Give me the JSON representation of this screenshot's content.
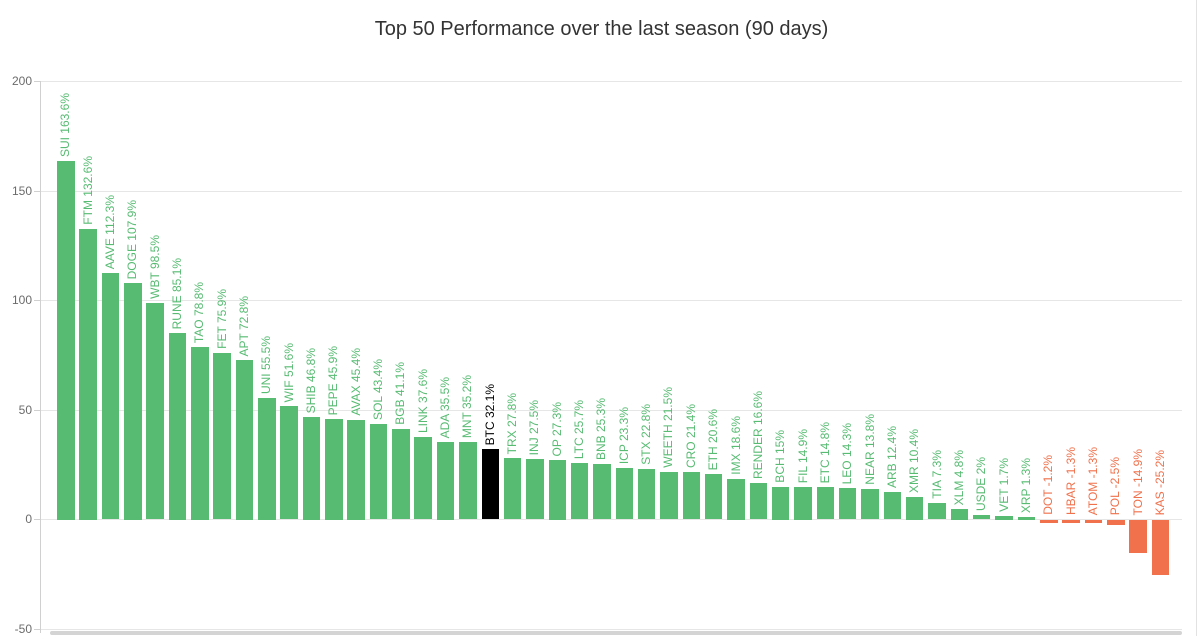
{
  "title": "Top 50 Performance over the last season (90 days)",
  "colors": {
    "positive": "#57bb72",
    "negative": "#f0714c",
    "btc": "#000000",
    "grid": "#e6e6e6",
    "axis": "#d0d0d0",
    "tick_text": "#6b6b6b",
    "title_text": "#333333",
    "scrollbar": "#d4d4d4"
  },
  "chart_data": {
    "type": "bar",
    "title": "Top 50 Performance over the last season (90 days)",
    "xlabel": "",
    "ylabel": "",
    "ylim": [
      -50,
      200
    ],
    "grid": true,
    "legend_position": "none",
    "y_ticks": [
      {
        "label": "200",
        "value": 200
      },
      {
        "label": "150",
        "value": 150
      },
      {
        "label": "100",
        "value": 100
      },
      {
        "label": "50",
        "value": 50
      },
      {
        "label": "0",
        "value": 0
      },
      {
        "label": "-50",
        "value": -50
      }
    ],
    "bars": [
      {
        "sym": "SUI",
        "label": "SUI 163.6%",
        "value": 163.6,
        "color_role": "positive"
      },
      {
        "sym": "FTM",
        "label": "FTM 132.6%",
        "value": 132.6,
        "color_role": "positive"
      },
      {
        "sym": "AAVE",
        "label": "AAVE 112.3%",
        "value": 112.3,
        "color_role": "positive"
      },
      {
        "sym": "DOGE",
        "label": "DOGE 107.9%",
        "value": 107.9,
        "color_role": "positive"
      },
      {
        "sym": "WBT",
        "label": "WBT 98.5%",
        "value": 98.5,
        "color_role": "positive"
      },
      {
        "sym": "RUNE",
        "label": "RUNE 85.1%",
        "value": 85.1,
        "color_role": "positive"
      },
      {
        "sym": "TAO",
        "label": "TAO 78.8%",
        "value": 78.8,
        "color_role": "positive"
      },
      {
        "sym": "FET",
        "label": "FET 75.9%",
        "value": 75.9,
        "color_role": "positive"
      },
      {
        "sym": "APT",
        "label": "APT 72.8%",
        "value": 72.8,
        "color_role": "positive"
      },
      {
        "sym": "UNI",
        "label": "UNI 55.5%",
        "value": 55.5,
        "color_role": "positive"
      },
      {
        "sym": "WIF",
        "label": "WIF 51.6%",
        "value": 51.6,
        "color_role": "positive"
      },
      {
        "sym": "SHIB",
        "label": "SHIB 46.8%",
        "value": 46.8,
        "color_role": "positive"
      },
      {
        "sym": "PEPE",
        "label": "PEPE 45.9%",
        "value": 45.9,
        "color_role": "positive"
      },
      {
        "sym": "AVAX",
        "label": "AVAX 45.4%",
        "value": 45.4,
        "color_role": "positive"
      },
      {
        "sym": "SOL",
        "label": "SOL 43.4%",
        "value": 43.4,
        "color_role": "positive"
      },
      {
        "sym": "BGB",
        "label": "BGB 41.1%",
        "value": 41.1,
        "color_role": "positive"
      },
      {
        "sym": "LINK",
        "label": "LINK 37.6%",
        "value": 37.6,
        "color_role": "positive"
      },
      {
        "sym": "ADA",
        "label": "ADA 35.5%",
        "value": 35.5,
        "color_role": "positive"
      },
      {
        "sym": "MNT",
        "label": "MNT 35.2%",
        "value": 35.2,
        "color_role": "positive"
      },
      {
        "sym": "BTC",
        "label": "BTC 32.1%",
        "value": 32.1,
        "color_role": "btc"
      },
      {
        "sym": "TRX",
        "label": "TRX 27.8%",
        "value": 27.8,
        "color_role": "positive"
      },
      {
        "sym": "INJ",
        "label": "INJ 27.5%",
        "value": 27.5,
        "color_role": "positive"
      },
      {
        "sym": "OP",
        "label": "OP 27.3%",
        "value": 27.3,
        "color_role": "positive"
      },
      {
        "sym": "LTC",
        "label": "LTC 25.7%",
        "value": 25.7,
        "color_role": "positive"
      },
      {
        "sym": "BNB",
        "label": "BNB 25.3%",
        "value": 25.3,
        "color_role": "positive"
      },
      {
        "sym": "ICP",
        "label": "ICP 23.3%",
        "value": 23.3,
        "color_role": "positive"
      },
      {
        "sym": "STX",
        "label": "STX 22.8%",
        "value": 22.8,
        "color_role": "positive"
      },
      {
        "sym": "WEETH",
        "label": "WEETH 21.5%",
        "value": 21.5,
        "color_role": "positive"
      },
      {
        "sym": "CRO",
        "label": "CRO 21.4%",
        "value": 21.4,
        "color_role": "positive"
      },
      {
        "sym": "ETH",
        "label": "ETH 20.6%",
        "value": 20.6,
        "color_role": "positive"
      },
      {
        "sym": "IMX",
        "label": "IMX 18.6%",
        "value": 18.6,
        "color_role": "positive"
      },
      {
        "sym": "RENDER",
        "label": "RENDER 16.6%",
        "value": 16.6,
        "color_role": "positive"
      },
      {
        "sym": "BCH",
        "label": "BCH 15%",
        "value": 15,
        "color_role": "positive"
      },
      {
        "sym": "FIL",
        "label": "FIL 14.9%",
        "value": 14.9,
        "color_role": "positive"
      },
      {
        "sym": "ETC",
        "label": "ETC 14.8%",
        "value": 14.8,
        "color_role": "positive"
      },
      {
        "sym": "LEO",
        "label": "LEO 14.3%",
        "value": 14.3,
        "color_role": "positive"
      },
      {
        "sym": "NEAR",
        "label": "NEAR 13.8%",
        "value": 13.8,
        "color_role": "positive"
      },
      {
        "sym": "ARB",
        "label": "ARB 12.4%",
        "value": 12.4,
        "color_role": "positive"
      },
      {
        "sym": "XMR",
        "label": "XMR 10.4%",
        "value": 10.4,
        "color_role": "positive"
      },
      {
        "sym": "TIA",
        "label": "TIA 7.3%",
        "value": 7.3,
        "color_role": "positive"
      },
      {
        "sym": "XLM",
        "label": "XLM 4.8%",
        "value": 4.8,
        "color_role": "positive"
      },
      {
        "sym": "USDE",
        "label": "USDE 2%",
        "value": 2,
        "color_role": "positive"
      },
      {
        "sym": "VET",
        "label": "VET 1.7%",
        "value": 1.7,
        "color_role": "positive"
      },
      {
        "sym": "XRP",
        "label": "XRP 1.3%",
        "value": 1.3,
        "color_role": "positive"
      },
      {
        "sym": "DOT",
        "label": "DOT -1.2%",
        "value": -1.2,
        "color_role": "negative"
      },
      {
        "sym": "HBAR",
        "label": "HBAR -1.3%",
        "value": -1.3,
        "color_role": "negative"
      },
      {
        "sym": "ATOM",
        "label": "ATOM -1.3%",
        "value": -1.3,
        "color_role": "negative"
      },
      {
        "sym": "POL",
        "label": "POL -2.5%",
        "value": -2.5,
        "color_role": "negative"
      },
      {
        "sym": "TON",
        "label": "TON -14.9%",
        "value": -14.9,
        "color_role": "negative"
      },
      {
        "sym": "KAS",
        "label": "KAS -25.2%",
        "value": -25.2,
        "color_role": "negative"
      }
    ]
  }
}
